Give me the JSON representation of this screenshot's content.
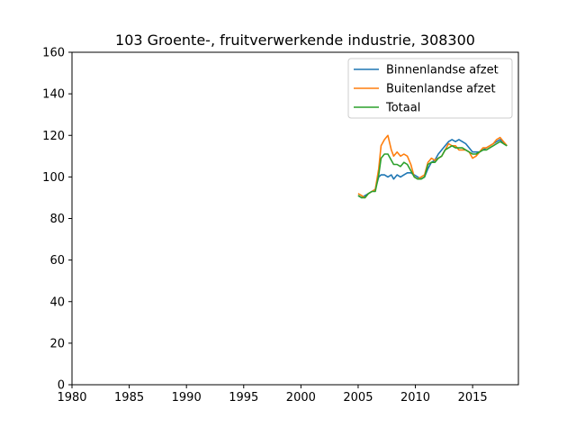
{
  "chart_data": {
    "type": "line",
    "title": "103 Groente-, fruitverwerkende industrie, 308300",
    "xlabel": "",
    "ylabel": "",
    "xlim": [
      1980,
      2019
    ],
    "ylim": [
      0,
      160
    ],
    "xticks": [
      "1980",
      "1985",
      "1990",
      "1995",
      "2000",
      "2005",
      "2010",
      "2015"
    ],
    "yticks": [
      "0",
      "20",
      "40",
      "60",
      "80",
      "100",
      "120",
      "140",
      "160"
    ],
    "grid": false,
    "legend_position": "top-right",
    "series": [
      {
        "name": "Binnenlandse afzet",
        "color": "#1f77b4",
        "x": [
          2005.0,
          2005.3,
          2005.6,
          2005.9,
          2006.2,
          2006.5,
          2006.8,
          2007.0,
          2007.3,
          2007.6,
          2007.9,
          2008.1,
          2008.4,
          2008.7,
          2009.0,
          2009.3,
          2009.6,
          2009.9,
          2010.2,
          2010.5,
          2010.8,
          2011.1,
          2011.4,
          2011.7,
          2012.0,
          2012.3,
          2012.6,
          2012.9,
          2013.2,
          2013.5,
          2013.8,
          2014.1,
          2014.4,
          2014.7,
          2015.0,
          2015.3,
          2015.6,
          2015.9,
          2016.2,
          2016.5,
          2016.8,
          2017.1,
          2017.4,
          2017.7,
          2018.0
        ],
        "y": [
          91,
          90,
          91,
          92,
          93,
          94,
          100,
          101,
          101,
          100,
          101,
          99,
          101,
          100,
          101,
          102,
          102,
          101,
          100,
          99,
          100,
          104,
          107,
          108,
          111,
          113,
          115,
          117,
          118,
          117,
          118,
          117,
          116,
          114,
          112,
          112,
          112,
          113,
          114,
          115,
          116,
          117,
          118,
          116,
          115
        ]
      },
      {
        "name": "Buitenlandse afzet",
        "color": "#ff7f0e",
        "x": [
          2005.0,
          2005.3,
          2005.6,
          2005.9,
          2006.2,
          2006.5,
          2006.8,
          2007.0,
          2007.3,
          2007.6,
          2007.9,
          2008.1,
          2008.4,
          2008.7,
          2009.0,
          2009.3,
          2009.6,
          2009.9,
          2010.2,
          2010.5,
          2010.8,
          2011.1,
          2011.4,
          2011.7,
          2012.0,
          2012.3,
          2012.6,
          2012.9,
          2013.2,
          2013.5,
          2013.8,
          2014.1,
          2014.4,
          2014.7,
          2015.0,
          2015.3,
          2015.6,
          2015.9,
          2016.2,
          2016.5,
          2016.8,
          2017.1,
          2017.4,
          2017.7,
          2018.0
        ],
        "y": [
          92,
          91,
          90,
          92,
          93,
          94,
          104,
          115,
          118,
          120,
          113,
          110,
          112,
          110,
          111,
          110,
          106,
          100,
          99,
          100,
          101,
          107,
          109,
          108,
          109,
          110,
          113,
          116,
          115,
          115,
          113,
          113,
          113,
          112,
          109,
          110,
          112,
          114,
          114,
          115,
          116,
          118,
          119,
          117,
          115
        ]
      },
      {
        "name": "Totaal",
        "color": "#2ca02c",
        "x": [
          2005.0,
          2005.3,
          2005.6,
          2005.9,
          2006.2,
          2006.5,
          2006.8,
          2007.0,
          2007.3,
          2007.6,
          2007.9,
          2008.1,
          2008.4,
          2008.7,
          2009.0,
          2009.3,
          2009.6,
          2009.9,
          2010.2,
          2010.5,
          2010.8,
          2011.1,
          2011.4,
          2011.7,
          2012.0,
          2012.3,
          2012.6,
          2012.9,
          2013.2,
          2013.5,
          2013.8,
          2014.1,
          2014.4,
          2014.7,
          2015.0,
          2015.3,
          2015.6,
          2015.9,
          2016.2,
          2016.5,
          2016.8,
          2017.1,
          2017.4,
          2017.7,
          2018.0
        ],
        "y": [
          91,
          90,
          90,
          92,
          93,
          93,
          101,
          109,
          111,
          111,
          108,
          106,
          106,
          105,
          107,
          106,
          103,
          100,
          99,
          99,
          100,
          106,
          107,
          107,
          109,
          110,
          113,
          114,
          115,
          114,
          114,
          114,
          113,
          112,
          111,
          111,
          112,
          113,
          113,
          114,
          115,
          116,
          117,
          116,
          115
        ]
      }
    ]
  }
}
